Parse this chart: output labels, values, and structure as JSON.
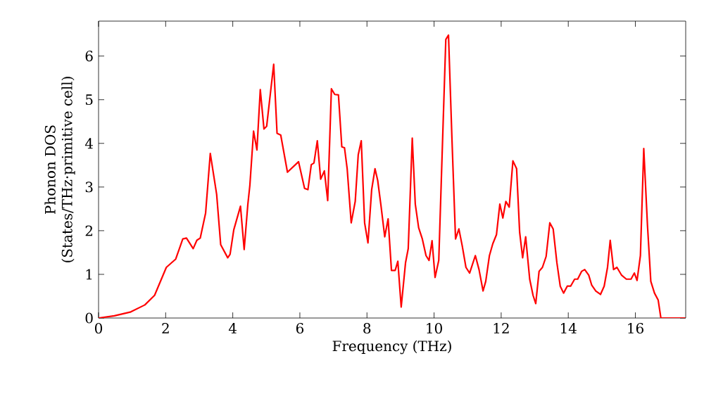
{
  "chart_data": {
    "type": "line",
    "xlabel": "Frequency (THz)",
    "ylabel": [
      "Phonon DOS",
      "(States/THz·primitive cell)"
    ],
    "xlim": [
      0,
      17.5
    ],
    "ylim": [
      0,
      6.8
    ],
    "xticks": [
      0,
      2,
      4,
      6,
      8,
      10,
      12,
      14,
      16
    ],
    "yticks": [
      0,
      1,
      2,
      3,
      4,
      5,
      6
    ],
    "marker": "none",
    "line_style": "solid",
    "series": [
      {
        "color": "#ff0000",
        "x": [
          0,
          0.47,
          0.96,
          1.38,
          1.67,
          2.02,
          2.3,
          2.51,
          2.62,
          2.82,
          2.93,
          3.03,
          3.19,
          3.33,
          3.52,
          3.64,
          3.85,
          3.92,
          4.03,
          4.23,
          4.34,
          4.45,
          4.51,
          4.62,
          4.72,
          4.82,
          4.93,
          5.01,
          5.22,
          5.32,
          5.43,
          5.63,
          5.96,
          6.14,
          6.24,
          6.34,
          6.42,
          6.52,
          6.62,
          6.73,
          6.83,
          6.94,
          7.04,
          7.15,
          7.25,
          7.33,
          7.41,
          7.53,
          7.65,
          7.74,
          7.83,
          7.93,
          8.03,
          8.14,
          8.24,
          8.32,
          8.42,
          8.53,
          8.63,
          8.73,
          8.84,
          8.92,
          9.02,
          9.15,
          9.23,
          9.35,
          9.44,
          9.54,
          9.65,
          9.76,
          9.85,
          9.94,
          10.03,
          10.14,
          10.24,
          10.35,
          10.43,
          10.53,
          10.64,
          10.74,
          10.84,
          10.95,
          11.06,
          11.23,
          11.34,
          11.46,
          11.54,
          11.65,
          11.75,
          11.86,
          11.96,
          12.05,
          12.14,
          12.24,
          12.35,
          12.46,
          12.55,
          12.64,
          12.73,
          12.85,
          12.95,
          13.03,
          13.13,
          13.23,
          13.34,
          13.45,
          13.55,
          13.66,
          13.76,
          13.86,
          13.97,
          14.07,
          14.19,
          14.28,
          14.4,
          14.49,
          14.61,
          14.7,
          14.82,
          14.96,
          15.07,
          15.17,
          15.25,
          15.35,
          15.45,
          15.59,
          15.73,
          15.87,
          15.97,
          16.05,
          16.15,
          16.25,
          16.36,
          16.46,
          16.57,
          16.68,
          16.76,
          17.49
        ],
        "values": [
          0,
          0.05,
          0.14,
          0.3,
          0.52,
          1.16,
          1.35,
          1.81,
          1.83,
          1.59,
          1.78,
          1.83,
          2.4,
          3.77,
          2.83,
          1.68,
          1.38,
          1.46,
          2.02,
          2.56,
          1.57,
          2.61,
          3.04,
          4.28,
          3.85,
          5.23,
          4.33,
          4.39,
          5.81,
          4.23,
          4.19,
          3.34,
          3.58,
          2.97,
          2.94,
          3.51,
          3.55,
          4.06,
          3.18,
          3.37,
          2.69,
          5.25,
          5.12,
          5.11,
          3.92,
          3.9,
          3.42,
          2.18,
          2.67,
          3.74,
          4.06,
          2.18,
          1.72,
          2.94,
          3.42,
          3.15,
          2.56,
          1.86,
          2.27,
          1.09,
          1.09,
          1.3,
          0.25,
          1.27,
          1.59,
          4.12,
          2.61,
          2.07,
          1.81,
          1.43,
          1.32,
          1.77,
          0.93,
          1.32,
          3.74,
          6.38,
          6.48,
          4.17,
          1.81,
          2.04,
          1.65,
          1.16,
          1.03,
          1.43,
          1.11,
          0.62,
          0.84,
          1.43,
          1.7,
          1.91,
          2.61,
          2.29,
          2.67,
          2.54,
          3.6,
          3.42,
          1.97,
          1.38,
          1.86,
          0.89,
          0.52,
          0.33,
          1.07,
          1.16,
          1.41,
          2.18,
          2.04,
          1.27,
          0.73,
          0.57,
          0.73,
          0.73,
          0.89,
          0.89,
          1.07,
          1.11,
          0.98,
          0.75,
          0.62,
          0.54,
          0.73,
          1.16,
          1.78,
          1.11,
          1.16,
          0.98,
          0.89,
          0.89,
          1.03,
          0.86,
          1.43,
          3.88,
          2.13,
          0.84,
          0.57,
          0.41,
          0,
          0
        ]
      }
    ]
  }
}
